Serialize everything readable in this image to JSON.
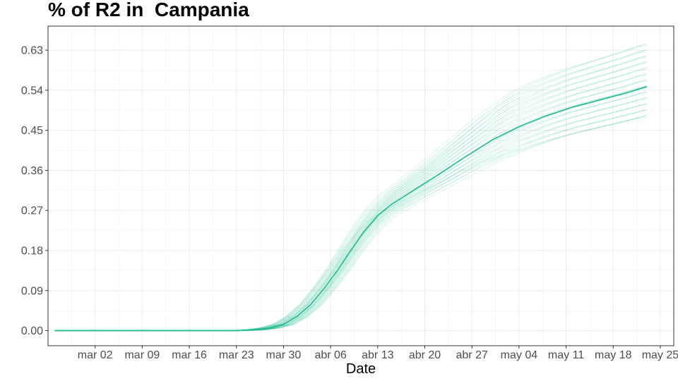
{
  "chart_data": {
    "type": "line",
    "title": "% of R2 in  Campania",
    "xlabel": "Date",
    "ylabel": "",
    "x_ticks": [
      "mar 02",
      "mar 09",
      "mar 16",
      "mar 23",
      "mar 30",
      "abr 06",
      "abr 13",
      "abr 20",
      "abr 27",
      "may 04",
      "may 11",
      "may 18",
      "may 25"
    ],
    "y_ticks": [
      "0.00",
      "0.09",
      "0.18",
      "0.27",
      "0.36",
      "0.45",
      "0.54",
      "0.63"
    ],
    "xlim": [
      "2020-02-24",
      "2020-05-27"
    ],
    "ylim": [
      -0.034,
      0.684
    ],
    "grid": true,
    "colors": {
      "main": "#1ABC8C",
      "ensemble": "#1ABC8C",
      "panel_border": "#333333",
      "grid": "#ebebeb"
    },
    "main_series": {
      "name": "",
      "x": [
        "2020-02-25",
        "2020-03-11",
        "2020-03-23",
        "2020-03-26",
        "2020-03-28",
        "2020-03-30",
        "2020-04-01",
        "2020-04-03",
        "2020-04-05",
        "2020-04-07",
        "2020-04-09",
        "2020-04-11",
        "2020-04-13",
        "2020-04-15",
        "2020-04-18",
        "2020-04-22",
        "2020-04-26",
        "2020-04-30",
        "2020-05-04",
        "2020-05-08",
        "2020-05-12",
        "2020-05-16",
        "2020-05-20",
        "2020-05-23"
      ],
      "y": [
        0.0,
        0.0,
        0.0,
        0.002,
        0.006,
        0.014,
        0.032,
        0.058,
        0.094,
        0.135,
        0.18,
        0.223,
        0.258,
        0.283,
        0.312,
        0.35,
        0.39,
        0.428,
        0.458,
        0.482,
        0.502,
        0.518,
        0.534,
        0.548
      ]
    },
    "ensemble_count": 40
  }
}
